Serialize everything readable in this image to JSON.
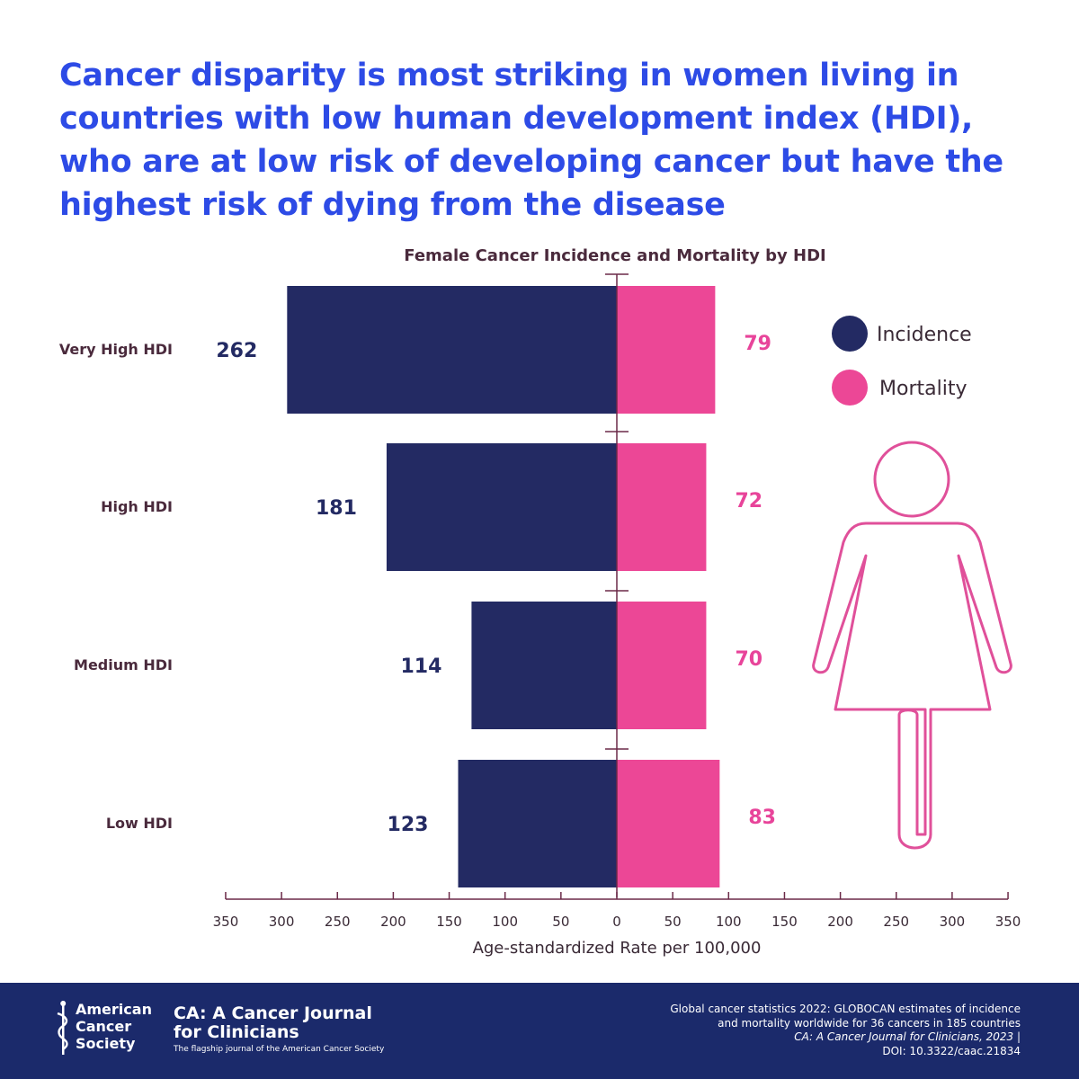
{
  "headline": "Cancer disparity is most striking in women living in countries with low human development index (HDI), who are at low risk of developing cancer but have the highest risk of dying from the disease",
  "colors": {
    "headline": "#2d4be6",
    "incidence": "#232a63",
    "mortality": "#ec4796",
    "footer_bg": "#1b2a6b",
    "axis": "#6b2a48"
  },
  "icons": [
    "female-figure-icon",
    "acs-caduceus-icon"
  ],
  "chart_data": {
    "type": "bar",
    "orientation": "horizontal-diverging",
    "title": "Female Cancer Incidence and Mortality by HDI",
    "xlabel": "Age-standardized Rate per 100,000",
    "xlim": [
      -350,
      350
    ],
    "xticks": [
      "350",
      "300",
      "250",
      "200",
      "150",
      "100",
      "50",
      "0",
      "50",
      "100",
      "150",
      "200",
      "250",
      "300",
      "350"
    ],
    "categories": [
      "Very High HDI",
      "High HDI",
      "Medium HDI",
      "Low HDI"
    ],
    "series": [
      {
        "name": "Incidence",
        "side": "left",
        "values": [
          262,
          181,
          114,
          123
        ],
        "bar_extent": [
          295,
          206,
          130,
          142
        ],
        "color": "#232a63"
      },
      {
        "name": "Mortality",
        "side": "right",
        "values": [
          79,
          72,
          70,
          83
        ],
        "bar_extent": [
          88,
          80,
          80,
          92
        ],
        "color": "#ec4796"
      }
    ],
    "legend": {
      "position": "right",
      "entries": [
        "Incidence",
        "Mortality"
      ]
    }
  },
  "footer": {
    "acs_lines": [
      "American",
      "Cancer",
      "Society"
    ],
    "journal_name": "CA: A Cancer Journal for Clinicians",
    "journal_tagline": "The flagship journal of the American Cancer Society",
    "citation_line1": "Global cancer statistics 2022: GLOBOCAN estimates of incidence",
    "citation_line2": "and mortality worldwide for 36 cancers in 185 countries",
    "citation_line3": "CA: A Cancer Journal for Clinicians, 2023 |",
    "citation_line4": "DOI: 10.3322/caac.21834"
  }
}
